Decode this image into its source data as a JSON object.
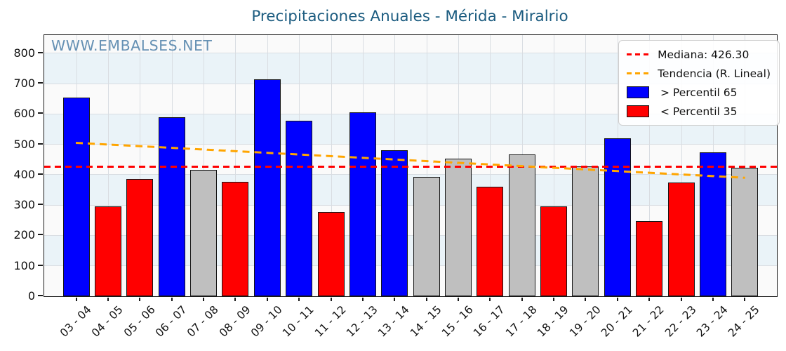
{
  "title": "Precipitaciones Anuales - Mérida - Miralrio",
  "watermark": "WWW.EMBALSES.NET",
  "colors": {
    "title": "#1c5c80",
    "watermark": "#6691b4",
    "bar_above_p65": "#0000ff",
    "bar_below_p35": "#ff0000",
    "bar_mid": "#bfbfbf",
    "median_line": "#ff0000",
    "trend_line": "#ffa500"
  },
  "legend": {
    "items": [
      {
        "key": "median",
        "swatch": "dashed-line",
        "color": "#ff0000",
        "label": "Mediana: 426.30"
      },
      {
        "key": "trend",
        "swatch": "dashed-line",
        "color": "#ffa500",
        "label": "Tendencia (R. Lineal)"
      },
      {
        "key": "p65",
        "swatch": "filled-box",
        "color": "#0000ff",
        "label": " > Percentil 65"
      },
      {
        "key": "p35",
        "swatch": "filled-box",
        "color": "#ff0000",
        "label": " < Percentil 35"
      }
    ]
  },
  "chart_data": {
    "type": "bar",
    "title": "Precipitaciones Anuales - Mérida - Miralrio",
    "categories": [
      "03 - 04",
      "04 - 05",
      "05 - 06",
      "06 - 07",
      "07 - 08",
      "08 - 09",
      "09 - 10",
      "10 - 11",
      "11 - 12",
      "12 - 13",
      "13 - 14",
      "14 - 15",
      "15 - 16",
      "16 - 17",
      "17 - 18",
      "18 - 19",
      "19 - 20",
      "20 - 21",
      "21 - 22",
      "22 - 23",
      "23 - 24",
      "24 - 25"
    ],
    "values": [
      655,
      296,
      387,
      590,
      416,
      378,
      715,
      577,
      277,
      605,
      480,
      392,
      452,
      360,
      468,
      297,
      427,
      521,
      248,
      375,
      473,
      424
    ],
    "bar_classes": [
      "above_p65",
      "below_p35",
      "below_p35",
      "above_p65",
      "mid",
      "below_p35",
      "above_p65",
      "above_p65",
      "below_p35",
      "above_p65",
      "above_p65",
      "mid",
      "mid",
      "below_p35",
      "mid",
      "below_p35",
      "mid",
      "above_p65",
      "below_p35",
      "below_p35",
      "above_p65",
      "mid"
    ],
    "class_colors": {
      "above_p65": "#0000ff",
      "below_p35": "#ff0000",
      "mid": "#bfbfbf"
    },
    "median": 426.3,
    "trend_line": {
      "type": "linear",
      "y_first": 505,
      "y_last": 390
    },
    "xlabel": "",
    "ylabel": "",
    "ylim": [
      0,
      860
    ],
    "yticks": [
      0,
      100,
      200,
      300,
      400,
      500,
      600,
      700,
      800
    ],
    "grid": true,
    "legend_position": "upper right"
  }
}
